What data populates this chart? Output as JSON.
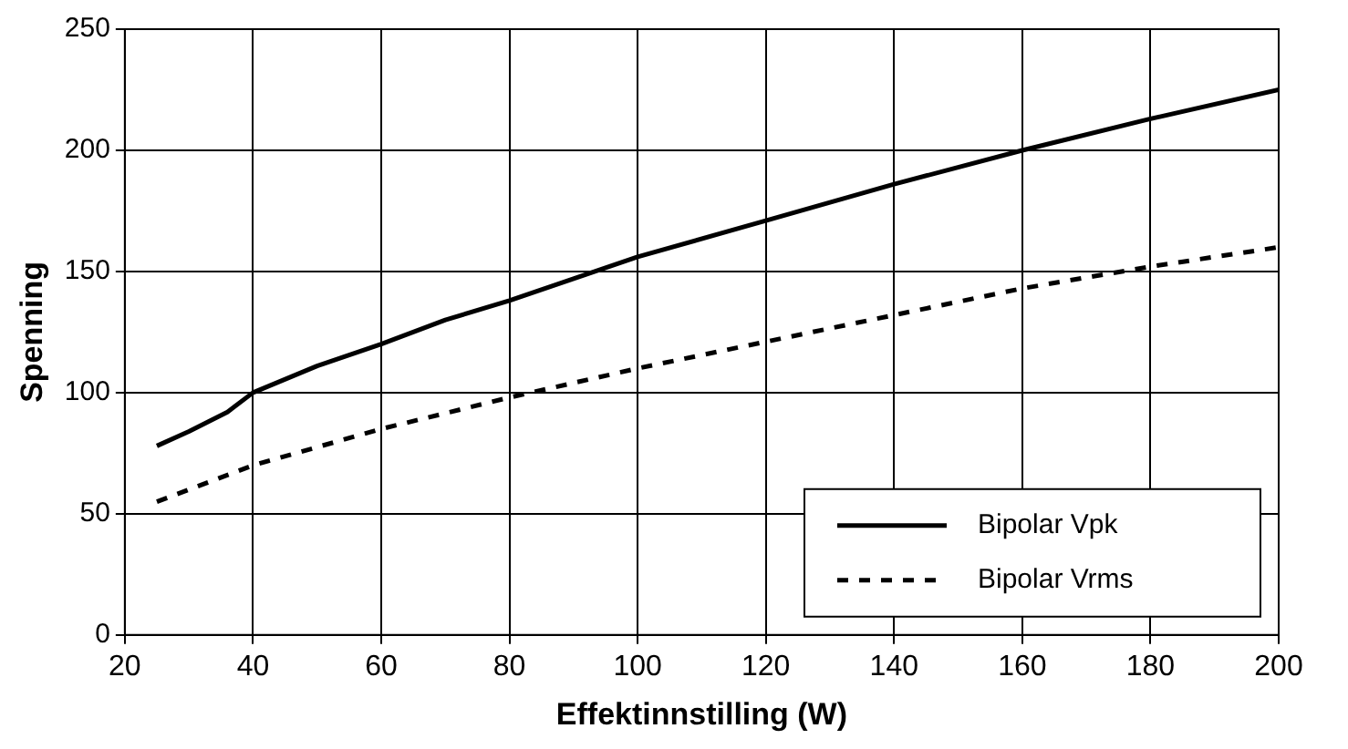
{
  "chart_data": {
    "type": "line",
    "xlabel": "Effektinnstilling (W)",
    "ylabel": "Spenning",
    "xlim": [
      20,
      200
    ],
    "xticks": [
      20,
      40,
      60,
      80,
      100,
      120,
      140,
      160,
      180,
      200
    ],
    "ylim": [
      0,
      250
    ],
    "yticks": [
      0,
      50,
      100,
      150,
      200,
      250
    ],
    "grid": true,
    "legend": "bottom right",
    "marker": "none",
    "series": [
      {
        "name": "Bipolar Vpk",
        "color": "#000000",
        "line_style": "solid",
        "x": [
          25,
          30,
          36,
          40,
          50,
          60,
          70,
          80,
          90,
          100,
          120,
          140,
          160,
          180,
          200
        ],
        "values": [
          78,
          84,
          92,
          100,
          111,
          120,
          130,
          138,
          147,
          156,
          171,
          186,
          200,
          213,
          225
        ]
      },
      {
        "name": "Bipolar Vrms",
        "color": "#000000",
        "line_style": "dashed",
        "x": [
          25,
          30,
          40,
          60,
          80,
          100,
          120,
          140,
          160,
          180,
          200
        ],
        "values": [
          55,
          60,
          70,
          85,
          98,
          110,
          121,
          132,
          143,
          152,
          160
        ]
      }
    ]
  }
}
